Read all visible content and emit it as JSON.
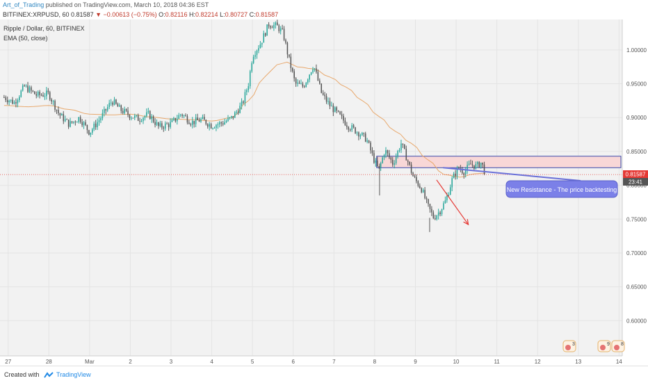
{
  "header": {
    "author": "Art_of_Trading",
    "published_text": "published on TradingView.com, March 10, 2018 04:36 EST"
  },
  "ticker": {
    "symbol": "BITFINEX:XRPUSD, 60",
    "last": "0.81587",
    "change": "▼ −0.00613 (−0.75%)",
    "o_label": "O:",
    "o": "0.82116",
    "h_label": "H:",
    "h": "0.82214",
    "l_label": "L:",
    "l": "0.80727",
    "c_label": "C:",
    "c": "0.81587"
  },
  "legend": {
    "title": "Ripple / Dollar, 60, BITFINEX",
    "indicator": "EMA (50, close)"
  },
  "colors": {
    "up": "#26a69a",
    "down": "#555555",
    "ema": "#e8a86c",
    "price_line": "#e53935",
    "zone_fill": "#f8d7d7",
    "zone_border": "#3949ab",
    "callout_bg": "#7b80e8",
    "arrow": "#e53935"
  },
  "annotation": {
    "callout_text": "New Resistance - The price backtesting",
    "zone_low": 0.826,
    "zone_high": 0.843,
    "arrow_from": {
      "x": 10.52,
      "y": 0.808
    },
    "arrow_to": {
      "x": 11.3,
      "y": 0.742
    }
  },
  "price_label": {
    "value": "0.81587",
    "countdown": "23:41"
  },
  "footer": {
    "created_with": "Created with",
    "brand": "TradingView"
  },
  "event_badges": [
    "3",
    "9",
    "8"
  ],
  "chart_data": {
    "type": "candlestick",
    "title": "Ripple / Dollar, 60, BITFINEX",
    "x_ticks": [
      {
        "label": "27",
        "x": 0
      },
      {
        "label": "28",
        "x": 1
      },
      {
        "label": "Mar",
        "x": 2
      },
      {
        "label": "2",
        "x": 3
      },
      {
        "label": "3",
        "x": 4
      },
      {
        "label": "4",
        "x": 5
      },
      {
        "label": "5",
        "x": 6
      },
      {
        "label": "6",
        "x": 7
      },
      {
        "label": "7",
        "x": 8
      },
      {
        "label": "8",
        "x": 9
      },
      {
        "label": "9",
        "x": 10
      },
      {
        "label": "10",
        "x": 11
      },
      {
        "label": "11",
        "x": 12
      },
      {
        "label": "12",
        "x": 13
      },
      {
        "label": "13",
        "x": 14
      },
      {
        "label": "14",
        "x": 15
      }
    ],
    "xlim": [
      -0.2,
      15.08
    ],
    "ylim": [
      0.548,
      1.045
    ],
    "y_ticks": [
      0.6,
      0.65,
      0.7,
      0.75,
      0.8,
      0.85,
      0.9,
      0.95,
      1.0
    ],
    "y_tick_labels": [
      "0.60000",
      "0.65000",
      "0.70000",
      "0.75000",
      "0.80000",
      "0.85000",
      "0.90000",
      "0.95000",
      "1.00000"
    ],
    "last_price": 0.81587,
    "price_path": [
      [
        -0.1,
        0.93
      ],
      [
        0.15,
        0.922
      ],
      [
        0.4,
        0.946
      ],
      [
        0.7,
        0.933
      ],
      [
        1.0,
        0.935
      ],
      [
        1.25,
        0.905
      ],
      [
        1.5,
        0.89
      ],
      [
        1.75,
        0.9
      ],
      [
        2.0,
        0.878
      ],
      [
        2.3,
        0.902
      ],
      [
        2.55,
        0.925
      ],
      [
        2.75,
        0.912
      ],
      [
        3.0,
        0.903
      ],
      [
        3.2,
        0.898
      ],
      [
        3.45,
        0.905
      ],
      [
        3.7,
        0.886
      ],
      [
        4.0,
        0.891
      ],
      [
        4.25,
        0.906
      ],
      [
        4.5,
        0.893
      ],
      [
        4.75,
        0.897
      ],
      [
        5.0,
        0.888
      ],
      [
        5.3,
        0.893
      ],
      [
        5.5,
        0.9
      ],
      [
        5.75,
        0.92
      ],
      [
        5.9,
        0.95
      ],
      [
        6.0,
        0.992
      ],
      [
        6.2,
        1.01
      ],
      [
        6.4,
        1.038
      ],
      [
        6.6,
        1.035
      ],
      [
        6.75,
        1.025
      ],
      [
        6.9,
        0.985
      ],
      [
        7.05,
        0.95
      ],
      [
        7.25,
        0.946
      ],
      [
        7.5,
        0.978
      ],
      [
        7.7,
        0.935
      ],
      [
        7.9,
        0.918
      ],
      [
        8.1,
        0.905
      ],
      [
        8.35,
        0.888
      ],
      [
        8.6,
        0.878
      ],
      [
        8.8,
        0.868
      ],
      [
        9.0,
        0.835
      ],
      [
        9.1,
        0.822
      ],
      [
        9.25,
        0.852
      ],
      [
        9.45,
        0.832
      ],
      [
        9.65,
        0.862
      ],
      [
        9.8,
        0.838
      ],
      [
        9.95,
        0.812
      ],
      [
        10.15,
        0.795
      ],
      [
        10.3,
        0.77
      ],
      [
        10.45,
        0.752
      ],
      [
        10.6,
        0.762
      ],
      [
        10.75,
        0.778
      ],
      [
        10.9,
        0.808
      ],
      [
        11.05,
        0.826
      ],
      [
        11.2,
        0.82
      ],
      [
        11.35,
        0.831
      ],
      [
        11.5,
        0.828
      ],
      [
        11.62,
        0.834
      ],
      [
        11.72,
        0.816
      ]
    ],
    "ema_path": [
      [
        -0.1,
        0.918
      ],
      [
        0.5,
        0.916
      ],
      [
        1.0,
        0.918
      ],
      [
        1.5,
        0.912
      ],
      [
        2.0,
        0.905
      ],
      [
        2.5,
        0.904
      ],
      [
        3.0,
        0.905
      ],
      [
        3.5,
        0.901
      ],
      [
        4.0,
        0.898
      ],
      [
        4.5,
        0.897
      ],
      [
        5.0,
        0.895
      ],
      [
        5.5,
        0.9
      ],
      [
        5.9,
        0.925
      ],
      [
        6.3,
        0.96
      ],
      [
        6.6,
        0.978
      ],
      [
        6.85,
        0.982
      ],
      [
        7.1,
        0.975
      ],
      [
        7.5,
        0.972
      ],
      [
        7.9,
        0.96
      ],
      [
        8.3,
        0.945
      ],
      [
        8.7,
        0.925
      ],
      [
        9.1,
        0.902
      ],
      [
        9.5,
        0.88
      ],
      [
        9.9,
        0.862
      ],
      [
        10.3,
        0.838
      ],
      [
        10.7,
        0.816
      ],
      [
        11.1,
        0.812
      ],
      [
        11.45,
        0.817
      ],
      [
        11.72,
        0.818
      ]
    ]
  }
}
